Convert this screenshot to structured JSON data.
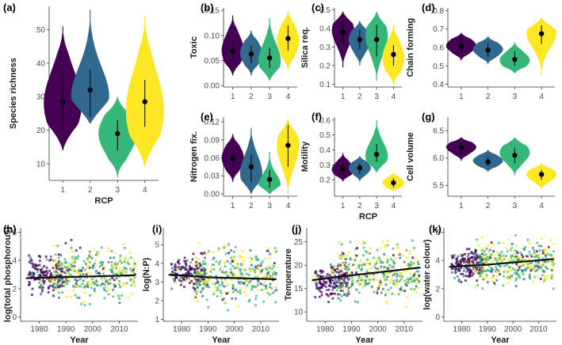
{
  "colors": {
    "rcp1": "#440154",
    "rcp2": "#31688e",
    "rcp3": "#35b779",
    "rcp4": "#fde725",
    "line": "#111111",
    "axis": "#333333"
  },
  "chart_data": [
    {
      "id": "a",
      "panel_label": "(a)",
      "type": "violin",
      "ylabel": "Species richness",
      "xlabel": "RCP",
      "categories": [
        "1",
        "2",
        "3",
        "4"
      ],
      "ylim": [
        5,
        57
      ],
      "yticks": [
        10,
        20,
        30,
        40,
        50
      ],
      "series": [
        {
          "name": "1",
          "min": 14,
          "max": 51,
          "mean": 28.5,
          "lo": 20,
          "hi": 37,
          "peak": 28
        },
        {
          "name": "2",
          "min": 22,
          "max": 56,
          "mean": 32,
          "lo": 24,
          "hi": 38,
          "peak": 30
        },
        {
          "name": "3",
          "min": 6,
          "max": 30,
          "mean": 19,
          "lo": 14,
          "hi": 23,
          "peak": 19
        },
        {
          "name": "4",
          "min": 9,
          "max": 54,
          "mean": 28.5,
          "lo": 21,
          "hi": 35,
          "peak": 26
        }
      ]
    },
    {
      "id": "b",
      "panel_label": "(b)",
      "type": "violin",
      "ylabel": "Toxic",
      "xlabel": "",
      "categories": [
        "1",
        "2",
        "3",
        "4"
      ],
      "ylim": [
        -0.003,
        0.155
      ],
      "yticks": [
        0.0,
        0.05,
        0.1,
        0.15
      ],
      "ytick_labels": [
        "0.00",
        "0.05",
        "0.10",
        "0.15"
      ],
      "series": [
        {
          "name": "1",
          "min": 0.02,
          "max": 0.14,
          "mean": 0.069,
          "lo": 0.05,
          "hi": 0.09,
          "peak": 0.07
        },
        {
          "name": "2",
          "min": 0.02,
          "max": 0.11,
          "mean": 0.063,
          "lo": 0.045,
          "hi": 0.08,
          "peak": 0.065
        },
        {
          "name": "3",
          "min": 0.01,
          "max": 0.135,
          "mean": 0.055,
          "lo": 0.035,
          "hi": 0.075,
          "peak": 0.05
        },
        {
          "name": "4",
          "min": 0.03,
          "max": 0.15,
          "mean": 0.094,
          "lo": 0.07,
          "hi": 0.12,
          "peak": 0.09
        }
      ]
    },
    {
      "id": "c",
      "panel_label": "(c)",
      "type": "violin",
      "ylabel": "Silica req.",
      "xlabel": "",
      "categories": [
        "1",
        "2",
        "3",
        "4"
      ],
      "ylim": [
        0.085,
        0.51
      ],
      "yticks": [
        0.1,
        0.2,
        0.3,
        0.4,
        0.5
      ],
      "series": [
        {
          "name": "1",
          "min": 0.19,
          "max": 0.49,
          "mean": 0.38,
          "lo": 0.32,
          "hi": 0.44,
          "peak": 0.39
        },
        {
          "name": "2",
          "min": 0.2,
          "max": 0.44,
          "mean": 0.34,
          "lo": 0.29,
          "hi": 0.39,
          "peak": 0.34
        },
        {
          "name": "3",
          "min": 0.12,
          "max": 0.49,
          "mean": 0.34,
          "lo": 0.25,
          "hi": 0.42,
          "peak": 0.36
        },
        {
          "name": "4",
          "min": 0.1,
          "max": 0.42,
          "mean": 0.26,
          "lo": 0.2,
          "hi": 0.31,
          "peak": 0.24
        }
      ]
    },
    {
      "id": "d",
      "panel_label": "(d)",
      "type": "violin",
      "ylabel": "Chain forming",
      "xlabel": "",
      "categories": [
        "1",
        "2",
        "3",
        "4"
      ],
      "ylim": [
        0.385,
        0.815
      ],
      "yticks": [
        0.4,
        0.5,
        0.6,
        0.7,
        0.8
      ],
      "series": [
        {
          "name": "1",
          "min": 0.53,
          "max": 0.68,
          "mean": 0.605,
          "lo": 0.57,
          "hi": 0.65,
          "peak": 0.61
        },
        {
          "name": "2",
          "min": 0.51,
          "max": 0.66,
          "mean": 0.585,
          "lo": 0.55,
          "hi": 0.62,
          "peak": 0.59
        },
        {
          "name": "3",
          "min": 0.46,
          "max": 0.63,
          "mean": 0.535,
          "lo": 0.5,
          "hi": 0.58,
          "peak": 0.53
        },
        {
          "name": "4",
          "min": 0.45,
          "max": 0.76,
          "mean": 0.675,
          "lo": 0.62,
          "hi": 0.72,
          "peak": 0.68
        }
      ]
    },
    {
      "id": "e",
      "panel_label": "(e)",
      "type": "violin",
      "ylabel": "Nitrogen fix.",
      "xlabel": "",
      "categories": [
        "1",
        "2",
        "3",
        "4"
      ],
      "ylim": [
        -0.004,
        0.128
      ],
      "yticks": [
        0.0,
        0.03,
        0.06,
        0.09,
        0.12
      ],
      "ytick_labels": [
        "0.00",
        "0.03",
        "0.06",
        "0.09",
        "0.12"
      ],
      "series": [
        {
          "name": "1",
          "min": 0.02,
          "max": 0.1,
          "mean": 0.059,
          "lo": 0.045,
          "hi": 0.075,
          "peak": 0.06
        },
        {
          "name": "2",
          "min": 0.0,
          "max": 0.11,
          "mean": 0.045,
          "lo": 0.02,
          "hi": 0.065,
          "peak": 0.035
        },
        {
          "name": "3",
          "min": 0.0,
          "max": 0.07,
          "mean": 0.024,
          "lo": 0.01,
          "hi": 0.04,
          "peak": 0.015
        },
        {
          "name": "4",
          "min": 0.0,
          "max": 0.125,
          "mean": 0.081,
          "lo": 0.045,
          "hi": 0.115,
          "peak": 0.08
        }
      ]
    },
    {
      "id": "f",
      "panel_label": "(f)",
      "type": "violin",
      "ylabel": "Motility",
      "xlabel": "RCP",
      "categories": [
        "1",
        "2",
        "3",
        "4"
      ],
      "ylim": [
        0.09,
        0.62
      ],
      "yticks": [
        0.2,
        0.3,
        0.4,
        0.5,
        0.6
      ],
      "series": [
        {
          "name": "1",
          "min": 0.19,
          "max": 0.38,
          "mean": 0.27,
          "lo": 0.23,
          "hi": 0.31,
          "peak": 0.27
        },
        {
          "name": "2",
          "min": 0.19,
          "max": 0.36,
          "mean": 0.28,
          "lo": 0.24,
          "hi": 0.31,
          "peak": 0.28
        },
        {
          "name": "3",
          "min": 0.25,
          "max": 0.6,
          "mean": 0.37,
          "lo": 0.32,
          "hi": 0.44,
          "peak": 0.36
        },
        {
          "name": "4",
          "min": 0.12,
          "max": 0.25,
          "mean": 0.18,
          "lo": 0.15,
          "hi": 0.21,
          "peak": 0.18
        }
      ]
    },
    {
      "id": "g",
      "panel_label": "(g)",
      "type": "violin",
      "ylabel": "Cell volume",
      "xlabel": "",
      "categories": [
        "1",
        "2",
        "3",
        "4"
      ],
      "ylim": [
        5.3,
        6.75
      ],
      "yticks": [
        5.5,
        6.0,
        6.5
      ],
      "ytick_labels": [
        "5.5",
        "6.0",
        "6.5"
      ],
      "series": [
        {
          "name": "1",
          "min": 5.95,
          "max": 6.38,
          "mean": 6.19,
          "lo": 6.08,
          "hi": 6.28,
          "peak": 6.2
        },
        {
          "name": "2",
          "min": 5.75,
          "max": 6.15,
          "mean": 5.93,
          "lo": 5.85,
          "hi": 6.02,
          "peak": 5.95
        },
        {
          "name": "3",
          "min": 5.68,
          "max": 6.38,
          "mean": 6.05,
          "lo": 5.9,
          "hi": 6.18,
          "peak": 6.1
        },
        {
          "name": "4",
          "min": 5.43,
          "max": 5.9,
          "mean": 5.7,
          "lo": 5.6,
          "hi": 5.78,
          "peak": 5.7
        }
      ]
    },
    {
      "id": "h",
      "panel_label": "(h)",
      "type": "scatter",
      "ylabel": "log(total phosphorous)",
      "xlabel": "Year",
      "xlim": [
        1973,
        2017
      ],
      "ylim": [
        -0.3,
        6.3
      ],
      "xticks": [
        1980,
        1990,
        2000,
        2010
      ],
      "yticks": [
        0,
        2,
        4,
        6
      ],
      "trend": {
        "segments": [
          [
            1975,
            2.75
          ],
          [
            1990,
            2.82
          ],
          [
            2016,
            2.95
          ]
        ]
      },
      "bands": [
        {
          "x0": 1976,
          "x1": 1989,
          "ymin": 1.3,
          "ymax": 4.7,
          "dist": [
            0.75,
            0.15,
            0.05,
            0.05
          ]
        },
        {
          "x0": 1985,
          "x1": 2016,
          "ymin": 0.2,
          "ymax": 5.8,
          "dist": [
            0.08,
            0.12,
            0.45,
            0.35
          ]
        }
      ]
    },
    {
      "id": "i",
      "panel_label": "(i)",
      "type": "scatter",
      "ylabel": "log(N:P)",
      "xlabel": "Year",
      "xlim": [
        1973,
        2017
      ],
      "ylim": [
        0.9,
        5.9
      ],
      "xticks": [
        1980,
        1990,
        2000,
        2010
      ],
      "yticks": [
        1,
        2,
        3,
        4,
        5
      ],
      "trend": {
        "segments": [
          [
            1975,
            3.4
          ],
          [
            1990,
            3.25
          ],
          [
            2016,
            3.15
          ]
        ]
      },
      "bands": [
        {
          "x0": 1976,
          "x1": 1989,
          "ymin": 2.2,
          "ymax": 4.8,
          "dist": [
            0.75,
            0.15,
            0.05,
            0.05
          ]
        },
        {
          "x0": 1985,
          "x1": 2016,
          "ymin": 1.3,
          "ymax": 5.6,
          "dist": [
            0.08,
            0.12,
            0.45,
            0.35
          ]
        }
      ]
    },
    {
      "id": "j",
      "panel_label": "(j)",
      "type": "scatter",
      "ylabel": "Temperature",
      "xlabel": "Year",
      "xlim": [
        1973,
        2017
      ],
      "ylim": [
        8,
        28
      ],
      "xticks": [
        1980,
        1990,
        2000,
        2010
      ],
      "yticks": [
        10,
        15,
        20,
        25
      ],
      "trend": {
        "segments": [
          [
            1975,
            16.8
          ],
          [
            1985,
            17.5
          ],
          [
            2016,
            19.5
          ]
        ]
      },
      "bands": [
        {
          "x0": 1976,
          "x1": 1989,
          "ymin": 11,
          "ymax": 22,
          "dist": [
            0.75,
            0.15,
            0.05,
            0.05
          ]
        },
        {
          "x0": 1985,
          "x1": 2016,
          "ymin": 10,
          "ymax": 27,
          "dist": [
            0.08,
            0.12,
            0.45,
            0.35
          ]
        }
      ]
    },
    {
      "id": "k",
      "panel_label": "(k)",
      "type": "scatter",
      "ylabel": "log(water colour)",
      "xlabel": "Year",
      "xlim": [
        1973,
        2017
      ],
      "ylim": [
        -0.3,
        6.3
      ],
      "xticks": [
        1980,
        1990,
        2000,
        2010
      ],
      "yticks": [
        0,
        2,
        4,
        6
      ],
      "trend": {
        "segments": [
          [
            1975,
            3.55
          ],
          [
            1990,
            3.7
          ],
          [
            2016,
            4.1
          ]
        ]
      },
      "bands": [
        {
          "x0": 1976,
          "x1": 1989,
          "ymin": 2.2,
          "ymax": 5.2,
          "dist": [
            0.75,
            0.15,
            0.05,
            0.05
          ]
        },
        {
          "x0": 1985,
          "x1": 2016,
          "ymin": 1.5,
          "ymax": 6.0,
          "dist": [
            0.08,
            0.12,
            0.45,
            0.35
          ]
        }
      ]
    }
  ]
}
